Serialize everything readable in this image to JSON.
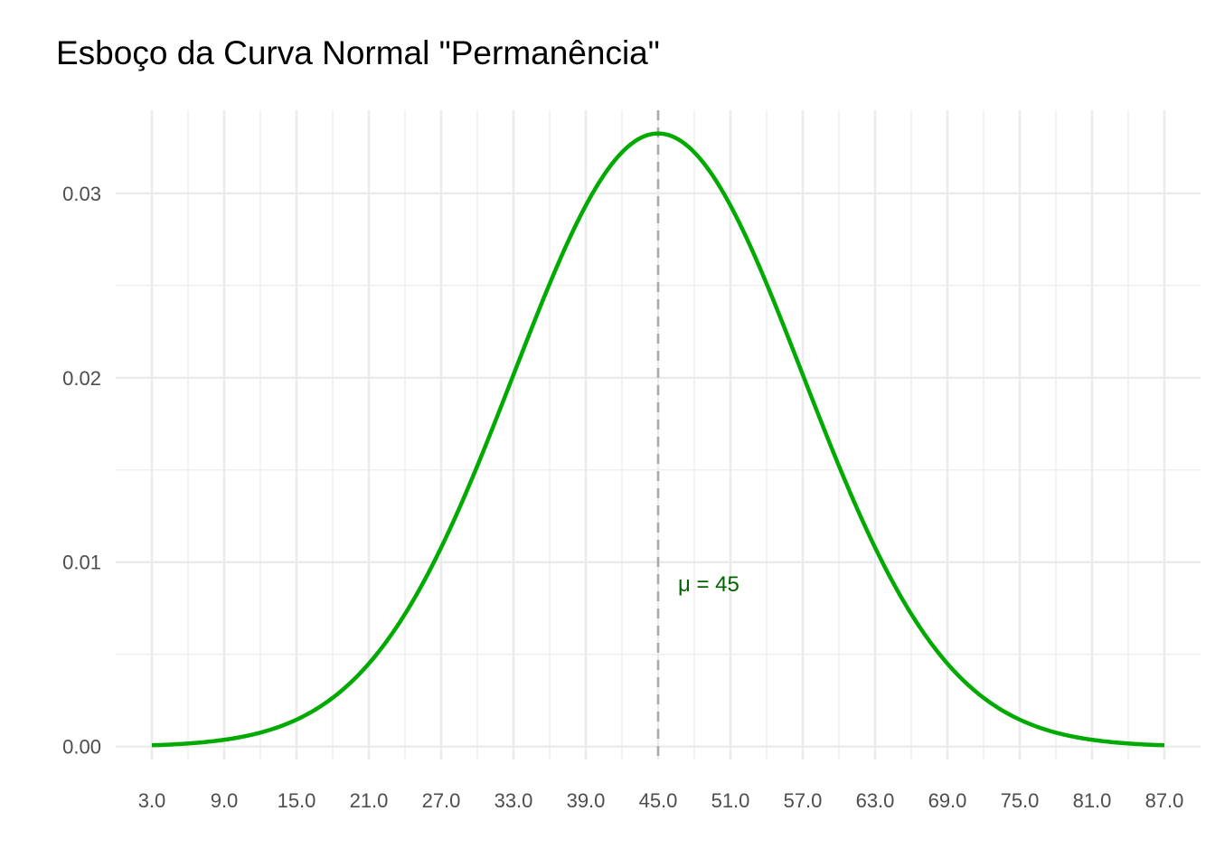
{
  "chart_data": {
    "type": "line",
    "title": "Esboço da Curva Normal \"Permanência\"",
    "xlabel": "",
    "ylabel": "",
    "distribution": {
      "mean": 45,
      "sd": 12
    },
    "x_range": [
      3,
      87
    ],
    "xlim": [
      0,
      90
    ],
    "ylim": [
      -0.0007,
      0.0345
    ],
    "x_ticks": [
      3,
      9,
      15,
      21,
      27,
      33,
      39,
      45,
      51,
      57,
      63,
      69,
      75,
      81,
      87
    ],
    "x_tick_labels": [
      "3.0",
      "9.0",
      "15.0",
      "21.0",
      "27.0",
      "33.0",
      "39.0",
      "45.0",
      "51.0",
      "57.0",
      "63.0",
      "69.0",
      "75.0",
      "81.0",
      "87.0"
    ],
    "y_ticks": [
      0,
      0.01,
      0.02,
      0.03
    ],
    "y_tick_labels": [
      "0.00",
      "0.01",
      "0.02",
      "0.03"
    ],
    "series": [
      {
        "x": [
          3,
          9,
          15,
          21,
          27,
          33,
          39,
          45,
          51,
          57,
          63,
          69,
          75,
          81,
          87
        ],
        "y": [
          7e-05,
          0.00036,
          0.00146,
          0.0045,
          0.0108,
          0.02017,
          0.02934,
          0.03324,
          0.02934,
          0.02017,
          0.0108,
          0.0045,
          0.00146,
          0.00036,
          7e-05
        ]
      }
    ],
    "reference_line": {
      "x": 45,
      "style": "dashed"
    },
    "annotation": {
      "text": "μ = 45",
      "x": 45,
      "y": 0.0088
    },
    "grid": true,
    "legend": "none",
    "colors": {
      "line": "#00AA00",
      "annotation": "#006400",
      "reference": "#AAAAAA",
      "grid": "#EBEBEB"
    }
  }
}
